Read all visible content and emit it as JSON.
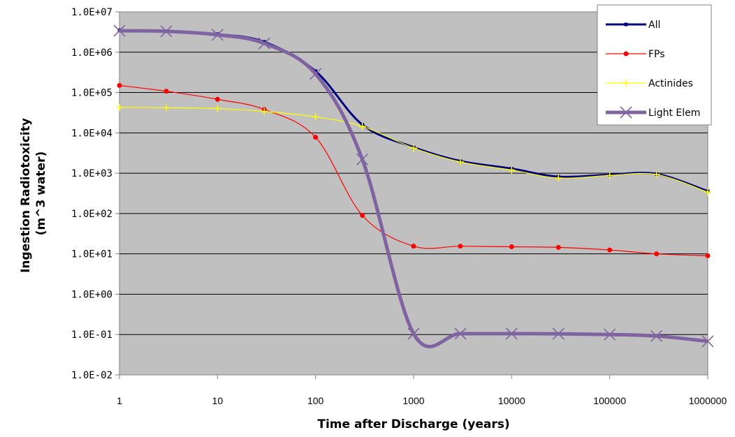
{
  "chart_data": {
    "type": "line",
    "title": "",
    "xlabel": "Time after Discharge (years)",
    "ylabel": [
      "Ingestion Radiotoxicity",
      "(m^3 water)"
    ],
    "x_scale": "log",
    "y_scale": "log",
    "xlim": [
      1,
      1000000
    ],
    "ylim": [
      0.01,
      10000000
    ],
    "x_tick_labels": [
      "1",
      "10",
      "100",
      "1000",
      "10000",
      "100000",
      "1000000"
    ],
    "y_tick_labels": [
      "1.0E+07",
      "1.0E+06",
      "1.0E+05",
      "1.0E+04",
      "1.0E+03",
      "1.0E+02",
      "1.0E+01",
      "1.0E+00",
      "1.0E-01",
      "1.0E-02"
    ],
    "grid": "horizontal",
    "plot_background": "#c0c0c0",
    "legend_position": "top-right",
    "x": [
      1,
      3,
      10,
      30,
      100,
      300,
      1000,
      3000,
      10000,
      30000,
      100000,
      300000,
      1000000
    ],
    "series": [
      {
        "name": "All",
        "color": "#000080",
        "marker": "square-small",
        "values": [
          3500000,
          3300000,
          2800000,
          1800000,
          340000,
          16000,
          4400,
          2000,
          1300,
          820,
          920,
          960,
          360
        ]
      },
      {
        "name": "FPs",
        "color": "#ff0000",
        "marker": "circle",
        "values": [
          150000,
          108000,
          68000,
          38000,
          7800,
          90,
          15.5,
          15.5,
          15,
          14.5,
          12.5,
          10,
          9
        ]
      },
      {
        "name": "Actinides",
        "color": "#ffff00",
        "marker": "plus",
        "values": [
          43000,
          42000,
          40000,
          34000,
          25000,
          14500,
          4200,
          1900,
          1200,
          760,
          880,
          930,
          340
        ]
      },
      {
        "name": "Light Elem",
        "color": "#8064a2",
        "marker": "x",
        "values": [
          3400000,
          3300000,
          2700000,
          1650000,
          290000,
          2200,
          0.105,
          0.105,
          0.105,
          0.104,
          0.1,
          0.092,
          0.068
        ]
      }
    ]
  }
}
